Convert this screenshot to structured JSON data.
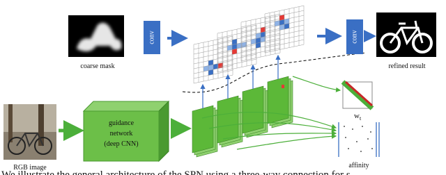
{
  "labels": {
    "coarse_mask": "coarse mask",
    "conv_left": "conv",
    "conv_right": "conv",
    "refined_result": "refined result",
    "rgb_image": "RGB image",
    "guidance_network": [
      "guidance",
      "network",
      "(deep CNN)"
    ],
    "weights": {
      "text": "w",
      "subscript": "t"
    },
    "affinity": "affinity"
  },
  "caption": "We illustrate the general architecture of the SPN using a three-way connection for s"
}
